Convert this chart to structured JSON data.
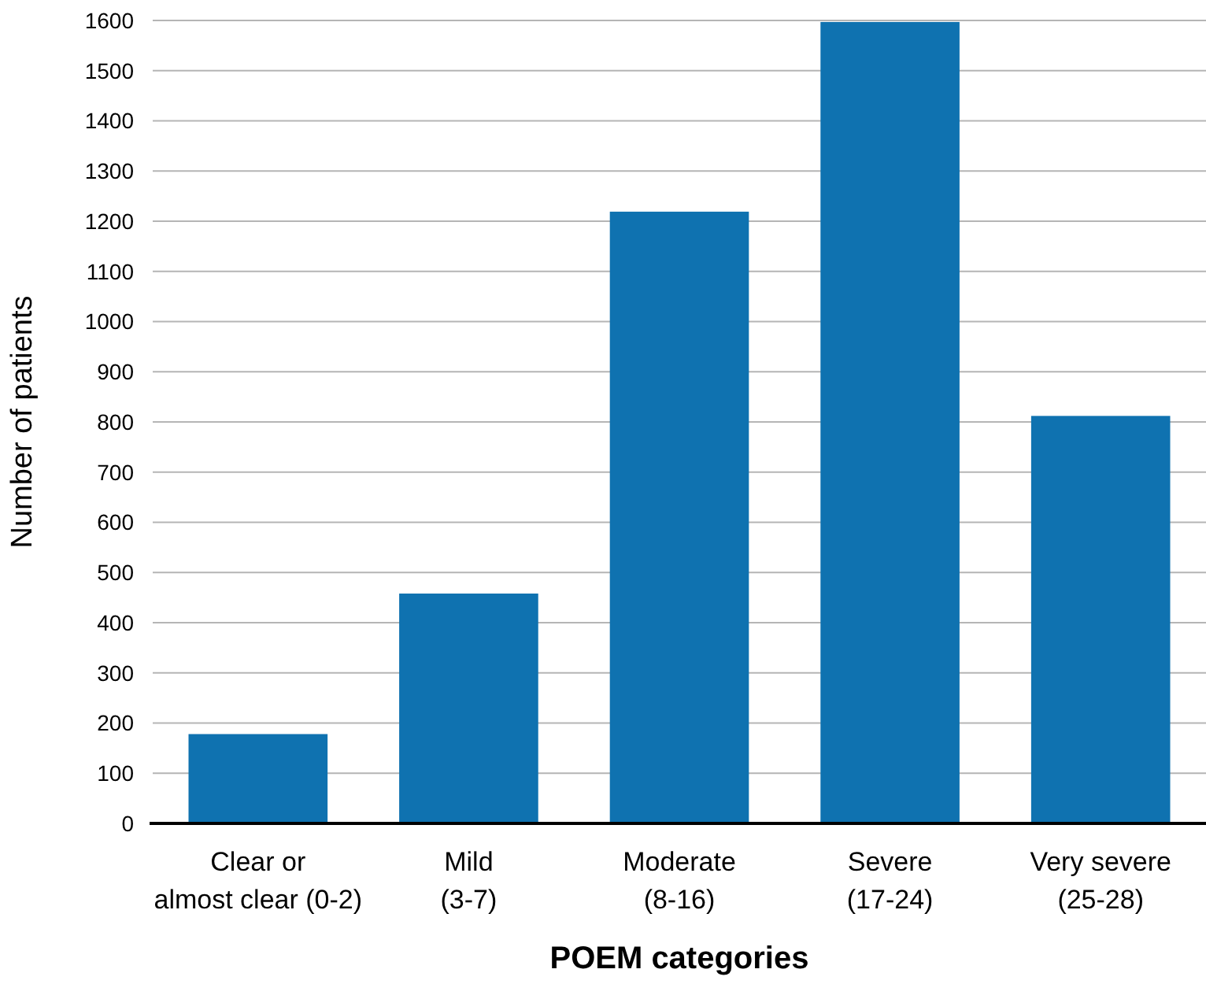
{
  "chart_data": {
    "type": "bar",
    "xlabel": "POEM categories",
    "ylabel": "Number of patients",
    "categories": [
      "Clear or\nalmost clear (0-2)",
      "Mild\n(3-7)",
      "Moderate\n(8-16)",
      "Severe\n(17-24)",
      "Very severe\n(25-28)"
    ],
    "values": [
      178,
      458,
      1219,
      1597,
      812
    ],
    "color": "#0f72b0",
    "ylim": [
      0,
      1600
    ],
    "yticks": [
      0,
      100,
      200,
      300,
      400,
      500,
      600,
      700,
      800,
      900,
      1000,
      1100,
      1200,
      1300,
      1400,
      1500,
      1600
    ],
    "grid": "y"
  }
}
